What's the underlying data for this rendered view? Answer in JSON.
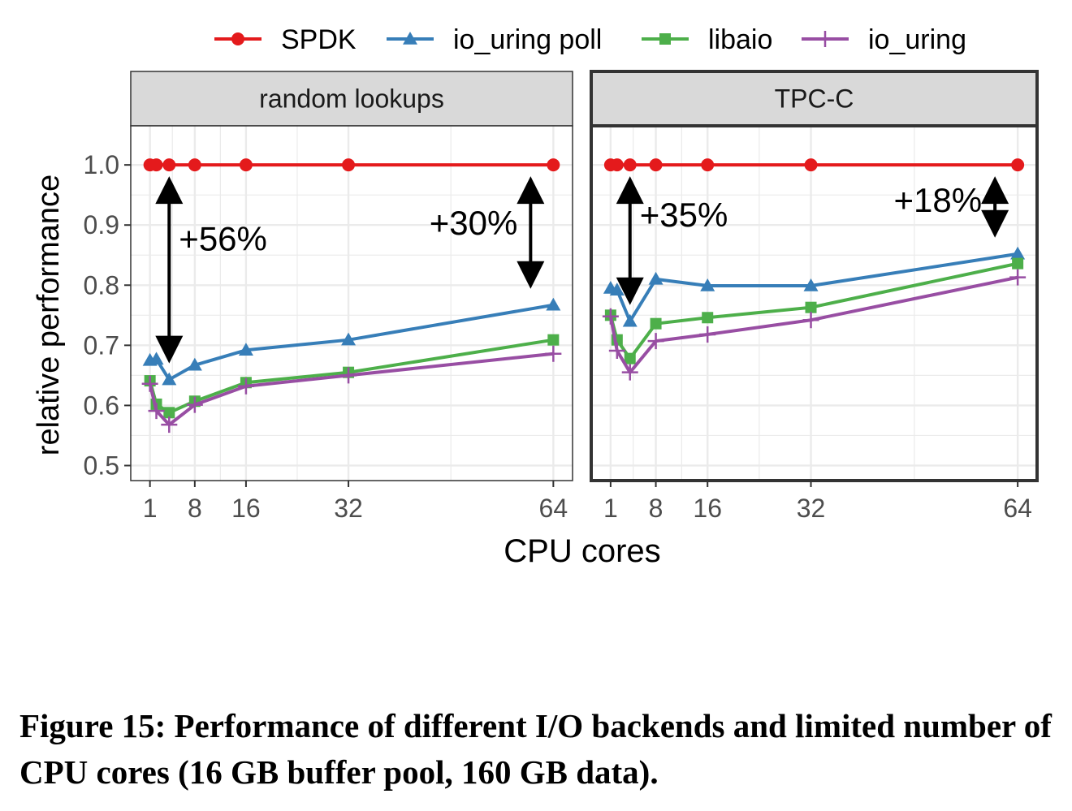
{
  "colors": {
    "SPDK": "#e41a1c",
    "io_uring poll": "#377eb8",
    "libaio": "#4daf4a",
    "io_uring": "#984ea3",
    "strip_fill": "#d9d9d9",
    "grid": "#ebebeb"
  },
  "legend": [
    "SPDK",
    "io_uring poll",
    "libaio",
    "io_uring"
  ],
  "chart_data": [
    {
      "type": "line",
      "title": "random lookups",
      "xlabel": "CPU cores",
      "ylabel": "relative performance",
      "x": [
        1,
        2,
        4,
        8,
        16,
        32,
        64
      ],
      "x_ticks": [
        1,
        8,
        16,
        32,
        64
      ],
      "y_ticks": [
        "0.5",
        "0.6",
        "0.7",
        "0.8",
        "0.9",
        "1.0"
      ],
      "xlim": [
        -2,
        67
      ],
      "ylim": [
        0.475,
        1.065
      ],
      "grid": true,
      "legend_position": "top",
      "series": [
        {
          "name": "SPDK",
          "marker": "circle",
          "values": [
            1.0,
            1.0,
            1.0,
            1.0,
            1.0,
            1.0,
            1.0
          ]
        },
        {
          "name": "io_uring poll",
          "marker": "triangle",
          "values": [
            0.675,
            0.677,
            0.643,
            0.667,
            0.692,
            0.709,
            0.767
          ]
        },
        {
          "name": "libaio",
          "marker": "square",
          "values": [
            0.641,
            0.602,
            0.588,
            0.607,
            0.638,
            0.655,
            0.709
          ]
        },
        {
          "name": "io_uring",
          "marker": "plus",
          "values": [
            0.636,
            0.591,
            0.568,
            0.601,
            0.632,
            0.65,
            0.686
          ]
        }
      ],
      "annotations": [
        {
          "text": "+56%",
          "x": 4,
          "from": 1.0,
          "to": 0.643
        },
        {
          "text": "+30%",
          "x": 64,
          "from": 1.0,
          "to": 0.767
        }
      ]
    },
    {
      "type": "line",
      "title": "TPC-C",
      "xlabel": "CPU cores",
      "ylabel": "relative performance",
      "x": [
        1,
        2,
        4,
        8,
        16,
        32,
        64
      ],
      "x_ticks": [
        1,
        8,
        16,
        32,
        64
      ],
      "y_ticks": [
        "0.5",
        "0.6",
        "0.7",
        "0.8",
        "0.9",
        "1.0"
      ],
      "xlim": [
        -2,
        67
      ],
      "ylim": [
        0.475,
        1.065
      ],
      "grid": true,
      "legend_position": "top",
      "series": [
        {
          "name": "SPDK",
          "marker": "circle",
          "values": [
            1.0,
            1.0,
            1.0,
            1.0,
            1.0,
            1.0,
            1.0
          ]
        },
        {
          "name": "io_uring poll",
          "marker": "triangle",
          "values": [
            0.795,
            0.792,
            0.74,
            0.81,
            0.799,
            0.799,
            0.852
          ]
        },
        {
          "name": "libaio",
          "marker": "square",
          "values": [
            0.75,
            0.709,
            0.678,
            0.736,
            0.746,
            0.763,
            0.836
          ]
        },
        {
          "name": "io_uring",
          "marker": "plus",
          "values": [
            0.748,
            0.691,
            0.655,
            0.707,
            0.718,
            0.742,
            0.813
          ]
        }
      ],
      "annotations": [
        {
          "text": "+35%",
          "x": 4,
          "from": 1.0,
          "to": 0.74
        },
        {
          "text": "+18%",
          "x": 64,
          "from": 1.0,
          "to": 0.852
        }
      ]
    }
  ],
  "caption": "Figure 15: Performance of different I/O backends and limited number of CPU cores (16 GB buffer pool, 160 GB data)."
}
